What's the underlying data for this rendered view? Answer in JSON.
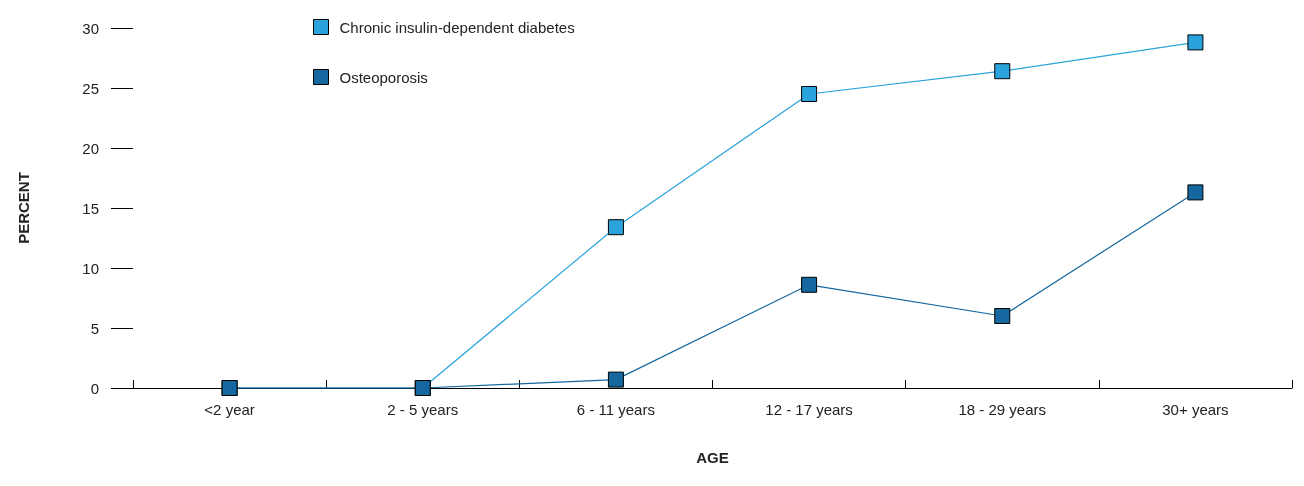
{
  "chart_data": {
    "type": "line",
    "xlabel": "AGE",
    "ylabel": "PERCENT",
    "categories": [
      "<2 year",
      "2 - 5 years",
      "6 - 11 years",
      "12 - 17 years",
      "18 - 29 years",
      "30+ years"
    ],
    "series": [
      {
        "name": "Chronic insulin-dependent diabetes",
        "color": "#2aa3dc",
        "values": [
          0,
          0,
          13.4,
          24.5,
          26.4,
          28.8
        ]
      },
      {
        "name": "Osteoporosis",
        "color": "#14679f",
        "values": [
          0,
          0,
          0.7,
          8.6,
          6.0,
          16.3
        ]
      }
    ],
    "ylim": [
      0,
      30
    ],
    "yticks": [
      0,
      5,
      10,
      15,
      20,
      25,
      30
    ],
    "grid": false,
    "legend": "top left",
    "marker": "square",
    "line_style": "solid"
  }
}
